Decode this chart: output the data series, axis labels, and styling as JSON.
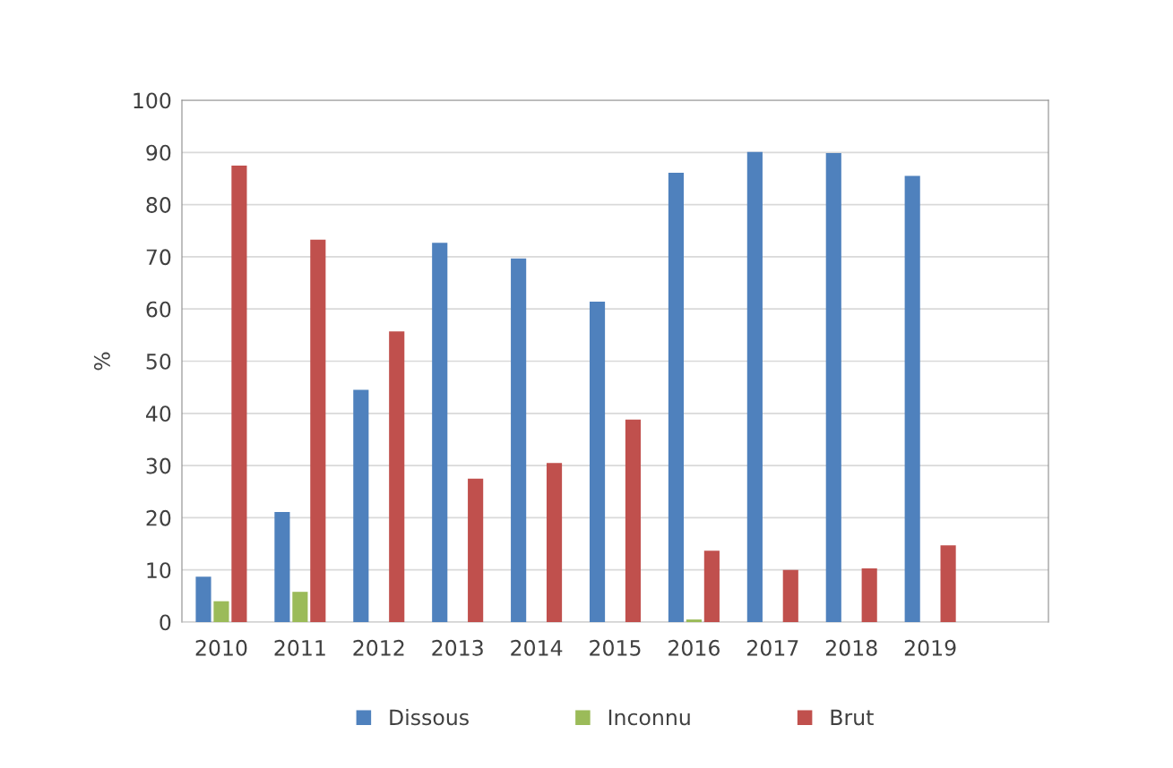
{
  "chart_data": {
    "type": "bar",
    "ylabel": "%",
    "categories": [
      "2010",
      "2011",
      "2012",
      "2013",
      "2014",
      "2015",
      "2016",
      "2017",
      "2018",
      "2019",
      null
    ],
    "series": [
      {
        "name": "Dissous",
        "color": "#4f81bd",
        "values": [
          8.7,
          21.1,
          44.5,
          72.7,
          69.7,
          61.4,
          86.1,
          90.1,
          89.9,
          85.5,
          null
        ]
      },
      {
        "name": "Inconnu",
        "color": "#9bbb59",
        "values": [
          4.0,
          5.8,
          null,
          null,
          null,
          null,
          0.5,
          null,
          null,
          null,
          null
        ]
      },
      {
        "name": "Brut",
        "color": "#c0504d",
        "values": [
          87.5,
          73.3,
          55.7,
          27.5,
          30.5,
          38.8,
          13.7,
          10.0,
          10.3,
          14.7,
          null
        ]
      }
    ],
    "ylim": [
      0,
      100
    ],
    "yticks": [
      0,
      10,
      20,
      30,
      40,
      50,
      60,
      70,
      80,
      90,
      100
    ],
    "grid": "y",
    "legend": "bottom"
  }
}
